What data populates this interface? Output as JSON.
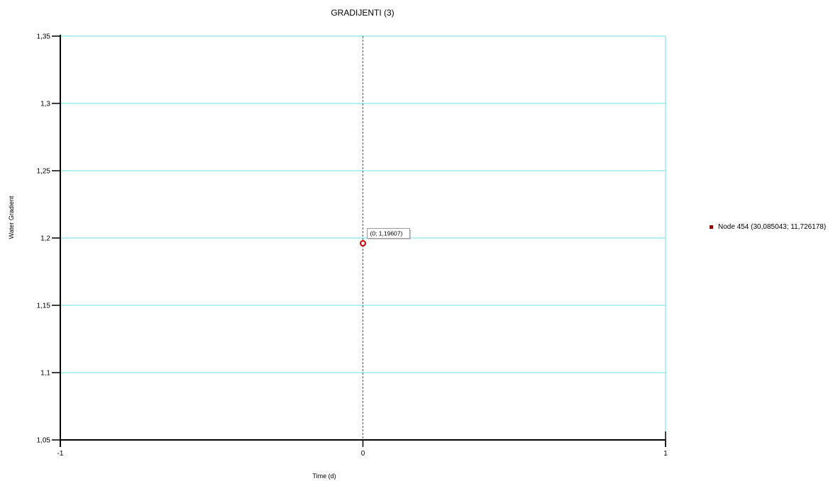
{
  "colors": {
    "grid": "#66e0e8",
    "axis": "#000000",
    "series": "#8b0000",
    "marker_ring": "#cc0000",
    "cursor_line": "#1e6d8f",
    "tooltip_border": "#9a9a9a"
  },
  "chart_data": {
    "type": "scatter",
    "title": "GRADIJENTI (3)",
    "xlabel": "Time (d)",
    "ylabel": "Water Gradient",
    "xlim": [
      -1,
      1
    ],
    "ylim": [
      1.05,
      1.35
    ],
    "x_ticks": [
      {
        "value": -1,
        "label": "-1"
      },
      {
        "value": 0,
        "label": "0"
      },
      {
        "value": 1,
        "label": "1"
      }
    ],
    "y_ticks": [
      {
        "value": 1.05,
        "label": "1,05"
      },
      {
        "value": 1.1,
        "label": "1,1"
      },
      {
        "value": 1.15,
        "label": "1,15"
      },
      {
        "value": 1.2,
        "label": "1,2"
      },
      {
        "value": 1.25,
        "label": "1,25"
      },
      {
        "value": 1.3,
        "label": "1,3"
      },
      {
        "value": 1.35,
        "label": "1,35"
      }
    ],
    "grid": true,
    "cursor_x": 0,
    "legend_position": "right",
    "series": [
      {
        "name": "Node 454 (30,085043; 11,726178)",
        "points": [
          {
            "x": 0,
            "y": 1.19607
          }
        ]
      }
    ],
    "annotations": [
      {
        "text": "(0; 1,19607)",
        "x": 0,
        "y": 1.19607
      }
    ]
  }
}
